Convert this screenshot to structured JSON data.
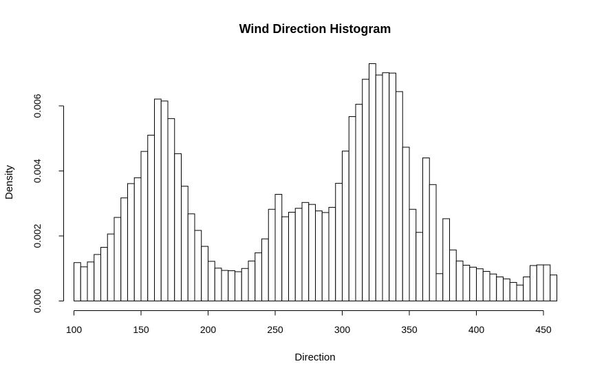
{
  "chart_data": {
    "type": "bar",
    "title": "Wind Direction Histogram",
    "xlabel": "Direction",
    "ylabel": "Density",
    "bin_start": 100,
    "bin_width": 5,
    "xlim": [
      100,
      460
    ],
    "ylim": [
      0,
      0.0073
    ],
    "x_ticks": [
      100,
      150,
      200,
      250,
      300,
      350,
      400,
      450
    ],
    "y_ticks": [
      0.0,
      0.002,
      0.004,
      0.006
    ],
    "y_tick_labels": [
      "0.000",
      "0.002",
      "0.004",
      "0.006"
    ],
    "values": [
      0.00118,
      0.00105,
      0.0012,
      0.00143,
      0.00165,
      0.00206,
      0.00257,
      0.00317,
      0.00361,
      0.00379,
      0.0046,
      0.0051,
      0.00621,
      0.00615,
      0.00561,
      0.00453,
      0.00353,
      0.00268,
      0.00217,
      0.00168,
      0.00122,
      0.00101,
      0.00094,
      0.00093,
      0.0009,
      0.001,
      0.00123,
      0.00148,
      0.00191,
      0.00282,
      0.00328,
      0.00259,
      0.00273,
      0.00285,
      0.00303,
      0.00297,
      0.00277,
      0.00272,
      0.00288,
      0.00362,
      0.00461,
      0.00567,
      0.00605,
      0.00682,
      0.0073,
      0.00695,
      0.00702,
      0.00701,
      0.00644,
      0.00473,
      0.00282,
      0.00211,
      0.0044,
      0.00358,
      0.00084,
      0.00253,
      0.00157,
      0.00123,
      0.0011,
      0.00104,
      0.00099,
      0.00091,
      0.00083,
      0.00074,
      0.00068,
      0.00057,
      0.00049,
      0.00074,
      0.00109,
      0.00111,
      0.00111,
      0.0008
    ]
  },
  "colors": {
    "bar_fill": "#ffffff",
    "bar_stroke": "#000000",
    "background": "#ffffff"
  }
}
